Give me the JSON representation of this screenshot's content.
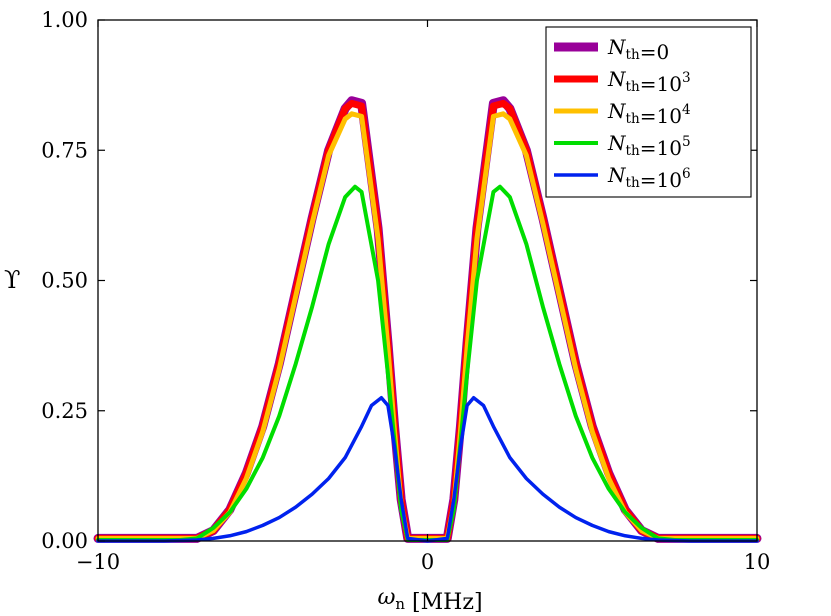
{
  "chart_data": {
    "type": "line",
    "title": "",
    "xlabel": "ω_n [MHz]",
    "ylabel": "ϒ",
    "xlim": [
      -10,
      10
    ],
    "ylim": [
      0,
      1
    ],
    "x_ticks": [
      -10,
      0,
      10
    ],
    "x_tick_labels": [
      "−10",
      "0",
      "10"
    ],
    "y_ticks": [
      0,
      0.25,
      0.5,
      0.75,
      1
    ],
    "y_tick_labels": [
      "0.00",
      "0.25",
      "0.50",
      "0.75",
      "1.00"
    ],
    "grid": false,
    "legend_position": "top-right",
    "series": [
      {
        "name": "N_th=0",
        "color": "#990099",
        "x": [
          -10,
          -8,
          -7.5,
          -7,
          -6.5,
          -6,
          -5.5,
          -5,
          -4.5,
          -4,
          -3.5,
          -3,
          -2.5,
          -2.3,
          -2,
          -1.5,
          -1.2,
          -1,
          -0.8,
          -0.6,
          0,
          0.6,
          0.8,
          1,
          1.2,
          1.5,
          2,
          2.3,
          2.5,
          3,
          3.5,
          4,
          4.5,
          5,
          5.5,
          6,
          6.5,
          7,
          7.5,
          8,
          10
        ],
        "y": [
          0.005,
          0.005,
          0.005,
          0.005,
          0.02,
          0.06,
          0.13,
          0.22,
          0.34,
          0.48,
          0.62,
          0.75,
          0.83,
          0.845,
          0.84,
          0.6,
          0.38,
          0.22,
          0.08,
          0.005,
          0.005,
          0.005,
          0.08,
          0.22,
          0.38,
          0.6,
          0.84,
          0.845,
          0.83,
          0.75,
          0.62,
          0.48,
          0.34,
          0.22,
          0.13,
          0.06,
          0.02,
          0.005,
          0.005,
          0.005,
          0.005
        ]
      },
      {
        "name": "N_th=10^3",
        "color": "#ff0000",
        "x": [
          -10,
          -8,
          -7.5,
          -7,
          -6.5,
          -6,
          -5.5,
          -5,
          -4.5,
          -4,
          -3.5,
          -3,
          -2.5,
          -2.3,
          -2,
          -1.5,
          -1.2,
          -1,
          -0.8,
          -0.6,
          0,
          0.6,
          0.8,
          1,
          1.2,
          1.5,
          2,
          2.3,
          2.5,
          3,
          3.5,
          4,
          4.5,
          5,
          5.5,
          6,
          6.5,
          7,
          7.5,
          8,
          10
        ],
        "y": [
          0.005,
          0.005,
          0.005,
          0.005,
          0.02,
          0.06,
          0.13,
          0.22,
          0.34,
          0.48,
          0.62,
          0.75,
          0.83,
          0.84,
          0.835,
          0.6,
          0.38,
          0.22,
          0.08,
          0.005,
          0.005,
          0.005,
          0.08,
          0.22,
          0.38,
          0.6,
          0.835,
          0.84,
          0.83,
          0.75,
          0.62,
          0.48,
          0.34,
          0.22,
          0.13,
          0.06,
          0.02,
          0.005,
          0.005,
          0.005,
          0.005
        ]
      },
      {
        "name": "N_th=10^4",
        "color": "#ffc000",
        "x": [
          -10,
          -8,
          -7.5,
          -7,
          -6.5,
          -6,
          -5.5,
          -5,
          -4.5,
          -4,
          -3.5,
          -3,
          -2.5,
          -2.3,
          -2,
          -1.5,
          -1.2,
          -1,
          -0.8,
          -0.6,
          0,
          0.6,
          0.8,
          1,
          1.2,
          1.5,
          2,
          2.3,
          2.5,
          3,
          3.5,
          4,
          4.5,
          5,
          5.5,
          6,
          6.5,
          7,
          7.5,
          8,
          10
        ],
        "y": [
          0.005,
          0.005,
          0.005,
          0.005,
          0.02,
          0.055,
          0.12,
          0.21,
          0.33,
          0.47,
          0.61,
          0.74,
          0.81,
          0.82,
          0.815,
          0.58,
          0.37,
          0.21,
          0.07,
          0.005,
          0.005,
          0.005,
          0.07,
          0.21,
          0.37,
          0.58,
          0.815,
          0.82,
          0.81,
          0.74,
          0.61,
          0.47,
          0.33,
          0.21,
          0.12,
          0.055,
          0.02,
          0.005,
          0.005,
          0.005,
          0.005
        ]
      },
      {
        "name": "N_th=10^5",
        "color": "#00dd00",
        "x": [
          -10,
          -8,
          -7.5,
          -7,
          -6.5,
          -6,
          -5.5,
          -5,
          -4.5,
          -4,
          -3.5,
          -3,
          -2.5,
          -2.2,
          -2,
          -1.5,
          -1.2,
          -1,
          -0.8,
          -0.6,
          0,
          0.6,
          0.8,
          1,
          1.2,
          1.5,
          2,
          2.2,
          2.5,
          3,
          3.5,
          4,
          4.5,
          5,
          5.5,
          6,
          6.5,
          7,
          7.5,
          8,
          10
        ],
        "y": [
          0.002,
          0.002,
          0.002,
          0.005,
          0.025,
          0.055,
          0.1,
          0.16,
          0.24,
          0.34,
          0.45,
          0.57,
          0.66,
          0.68,
          0.67,
          0.5,
          0.32,
          0.19,
          0.06,
          0.002,
          0.002,
          0.002,
          0.06,
          0.19,
          0.32,
          0.5,
          0.67,
          0.68,
          0.66,
          0.57,
          0.45,
          0.34,
          0.24,
          0.16,
          0.1,
          0.055,
          0.025,
          0.005,
          0.002,
          0.002,
          0.002
        ]
      },
      {
        "name": "N_th=10^6",
        "color": "#0022ee",
        "x": [
          -10,
          -8,
          -7,
          -6.5,
          -6,
          -5.5,
          -5,
          -4.5,
          -4,
          -3.5,
          -3,
          -2.5,
          -2,
          -1.7,
          -1.4,
          -1.2,
          -1,
          -0.8,
          -0.6,
          0,
          0.6,
          0.8,
          1,
          1.2,
          1.4,
          1.7,
          2,
          2.5,
          3,
          3.5,
          4,
          4.5,
          5,
          5.5,
          6,
          6.5,
          7,
          8,
          10
        ],
        "y": [
          0,
          0,
          0.002,
          0.005,
          0.01,
          0.018,
          0.03,
          0.045,
          0.065,
          0.09,
          0.12,
          0.16,
          0.22,
          0.26,
          0.275,
          0.26,
          0.18,
          0.08,
          0.005,
          0,
          0.005,
          0.08,
          0.18,
          0.26,
          0.275,
          0.26,
          0.22,
          0.16,
          0.12,
          0.09,
          0.065,
          0.045,
          0.03,
          0.018,
          0.01,
          0.005,
          0.002,
          0,
          0
        ]
      }
    ]
  }
}
